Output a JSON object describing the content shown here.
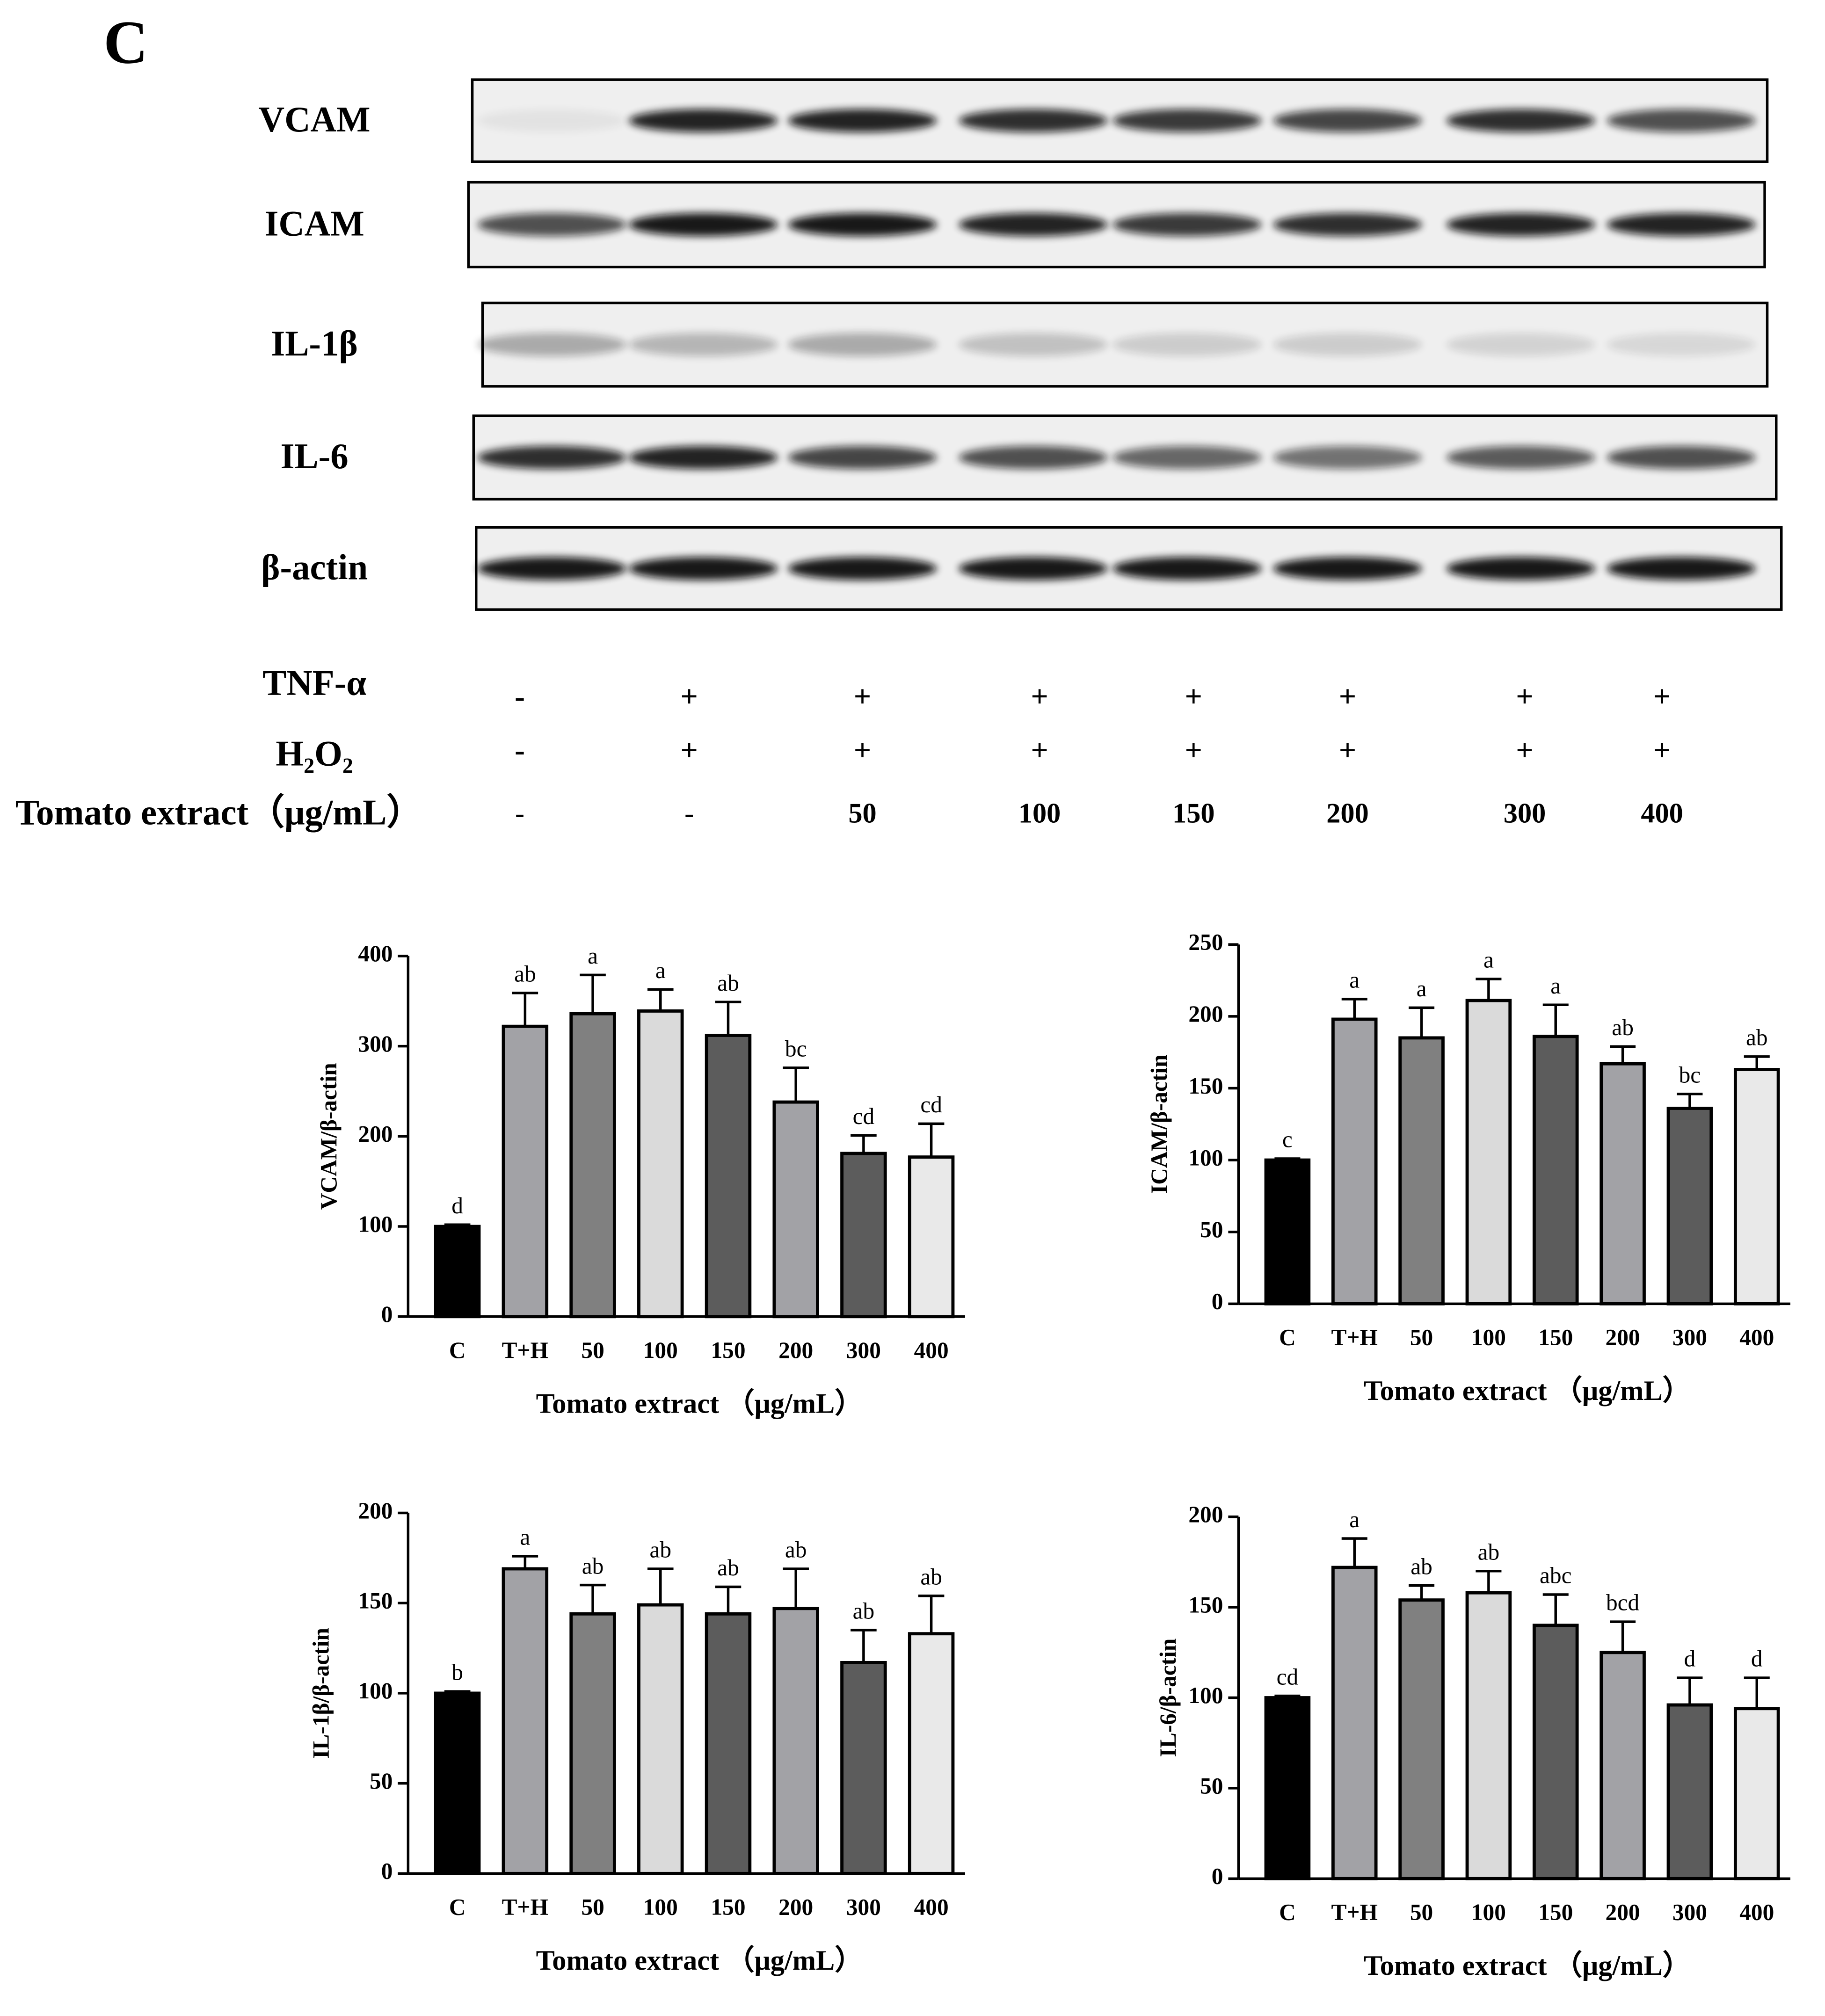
{
  "panel_label": "C",
  "blot": {
    "proteins": [
      "VCAM",
      "ICAM",
      "IL-1β",
      "IL-6",
      "β-actin"
    ],
    "treatments": [
      {
        "label": "TNF-α",
        "values": [
          "-",
          "+",
          "+",
          "+",
          "+",
          "+",
          "+",
          "+"
        ]
      },
      {
        "label": "H₂O₂",
        "values": [
          "-",
          "+",
          "+",
          "+",
          "+",
          "+",
          "+",
          "+"
        ]
      },
      {
        "label": "Tomato extract（μg/mL）",
        "values": [
          "-",
          "-",
          "50",
          "100",
          "150",
          "200",
          "300",
          "400"
        ]
      }
    ]
  },
  "chart_data": [
    {
      "type": "bar",
      "y_label": "VCAM/β-actin",
      "x_label": "Tomato extract （μg/mL）",
      "categories": [
        "C",
        "T+H",
        "50",
        "100",
        "150",
        "200",
        "300",
        "400"
      ],
      "values": [
        100,
        322,
        336,
        339,
        312,
        238,
        181,
        177
      ],
      "errors": [
        2,
        37,
        43,
        24,
        37,
        38,
        20,
        37
      ],
      "annotations": [
        "d",
        "ab",
        "a",
        "a",
        "ab",
        "bc",
        "cd",
        "cd"
      ],
      "colors": [
        "#000000",
        "#a2a2a6",
        "#808080",
        "#dadada",
        "#5c5c5c",
        "#a2a2a6",
        "#5c5c5c",
        "#e9e9e9"
      ],
      "ylim": [
        0,
        400
      ],
      "yticks": [
        0,
        100,
        200,
        300,
        400
      ]
    },
    {
      "type": "bar",
      "y_label": "ICAM/β-actin",
      "x_label": "Tomato extract （μg/mL）",
      "categories": [
        "C",
        "T+H",
        "50",
        "100",
        "150",
        "200",
        "300",
        "400"
      ],
      "values": [
        100,
        198,
        185,
        211,
        186,
        167,
        136,
        163
      ],
      "errors": [
        1,
        14,
        21,
        15,
        22,
        12,
        10,
        9
      ],
      "annotations": [
        "c",
        "a",
        "a",
        "a",
        "a",
        "ab",
        "bc",
        "ab"
      ],
      "colors": [
        "#000000",
        "#a2a2a6",
        "#808080",
        "#dadada",
        "#5c5c5c",
        "#a2a2a6",
        "#5c5c5c",
        "#e9e9e9"
      ],
      "ylim": [
        0,
        250
      ],
      "yticks": [
        0,
        50,
        100,
        150,
        200,
        250
      ]
    },
    {
      "type": "bar",
      "y_label": "IL-1β/β-actin",
      "x_label": "Tomato extract （μg/mL）",
      "categories": [
        "C",
        "T+H",
        "50",
        "100",
        "150",
        "200",
        "300",
        "400"
      ],
      "values": [
        100,
        169,
        144,
        149,
        144,
        147,
        117,
        133
      ],
      "errors": [
        1,
        7,
        16,
        20,
        15,
        22,
        18,
        21
      ],
      "annotations": [
        "b",
        "a",
        "ab",
        "ab",
        "ab",
        "ab",
        "ab",
        "ab"
      ],
      "colors": [
        "#000000",
        "#a2a2a6",
        "#808080",
        "#dadada",
        "#5c5c5c",
        "#a2a2a6",
        "#5c5c5c",
        "#e9e9e9"
      ],
      "ylim": [
        0,
        200
      ],
      "yticks": [
        0,
        50,
        100,
        150,
        200
      ]
    },
    {
      "type": "bar",
      "y_label": "IL-6/β-actin",
      "x_label": "Tomato extract （μg/mL）",
      "categories": [
        "C",
        "T+H",
        "50",
        "100",
        "150",
        "200",
        "300",
        "400"
      ],
      "values": [
        100,
        172,
        154,
        158,
        140,
        125,
        96,
        94
      ],
      "errors": [
        1,
        16,
        8,
        12,
        17,
        17,
        15,
        17
      ],
      "annotations": [
        "cd",
        "a",
        "ab",
        "ab",
        "abc",
        "bcd",
        "d",
        "d"
      ],
      "colors": [
        "#000000",
        "#a2a2a6",
        "#808080",
        "#dadada",
        "#5c5c5c",
        "#a2a2a6",
        "#5c5c5c",
        "#e9e9e9"
      ],
      "ylim": [
        0,
        200
      ],
      "yticks": [
        0,
        50,
        100,
        150,
        200
      ]
    }
  ]
}
